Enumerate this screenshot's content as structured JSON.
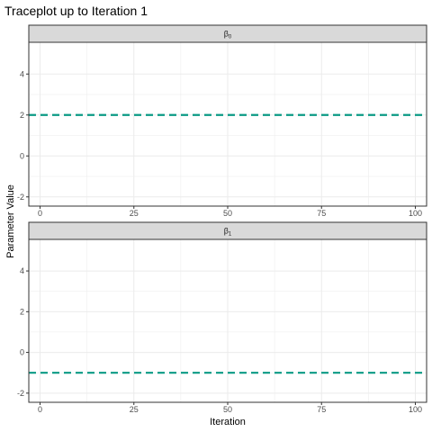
{
  "chart_data": {
    "type": "line",
    "title": "Traceplot up to Iteration 1",
    "xlabel": "Iteration",
    "ylabel": "Parameter Value",
    "grid": true,
    "panels": [
      {
        "strip_label": "β",
        "strip_subscript": "0",
        "xlim": [
          -3,
          103
        ],
        "ylim": [
          -2.45,
          5.55
        ],
        "x_ticks": [
          0,
          25,
          50,
          75,
          100
        ],
        "y_ticks": [
          -2,
          0,
          2,
          4
        ],
        "reference_line": {
          "value": 2,
          "style": "dashed",
          "color": "#0a9a85"
        },
        "series": []
      },
      {
        "strip_label": "β",
        "strip_subscript": "1",
        "xlim": [
          -3,
          103
        ],
        "ylim": [
          -2.45,
          5.55
        ],
        "x_ticks": [
          0,
          25,
          50,
          75,
          100
        ],
        "y_ticks": [
          -2,
          0,
          2,
          4
        ],
        "reference_line": {
          "value": -1,
          "style": "dashed",
          "color": "#0a9a85"
        },
        "series": []
      }
    ]
  },
  "colors": {
    "strip_bg": "#d9d9d9",
    "grid": "#ebebeb",
    "border": "#333333",
    "reference": "#0a9a85"
  }
}
